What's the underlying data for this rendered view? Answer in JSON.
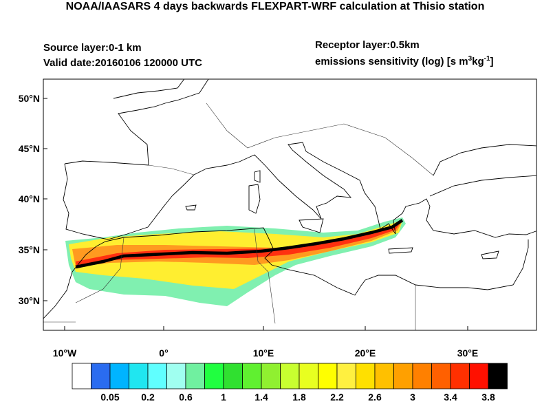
{
  "header": {
    "title": "NOAA/IAASARS 4 days backwards FLEXPART-WRF calculation at Thisio station",
    "source_layer": "Source layer:0-1 km",
    "valid_date": "Valid date:20160106 120000 UTC",
    "receptor_layer": "Receptor layer:0.5km",
    "units_label": [
      "emissions sensitivity (log) [s m",
      "3",
      "kg",
      "-1",
      "]"
    ]
  },
  "map": {
    "x_tick_labels": [
      "10°W",
      "0°",
      "10°E",
      "20°E",
      "30°E"
    ],
    "y_tick_labels": [
      "50°N",
      "45°N",
      "40°N",
      "35°N",
      "30°N"
    ]
  },
  "colorbar": {
    "colors": [
      "#ffffff",
      "#2a6cf0",
      "#00b4ff",
      "#20e6f0",
      "#60ffff",
      "#a0fff0",
      "#70f0a0",
      "#20ff40",
      "#30e030",
      "#60f030",
      "#90f030",
      "#c8ff30",
      "#e8ff20",
      "#ffff00",
      "#fff040",
      "#ffe000",
      "#ffc000",
      "#ffa000",
      "#ff8000",
      "#ff6000",
      "#ff3000",
      "#ff1000",
      "#000000"
    ],
    "labels": [
      "0.05",
      "0.2",
      "0.6",
      "1",
      "1.4",
      "1.8",
      "2.2",
      "2.6",
      "3",
      "3.4",
      "3.8"
    ]
  }
}
